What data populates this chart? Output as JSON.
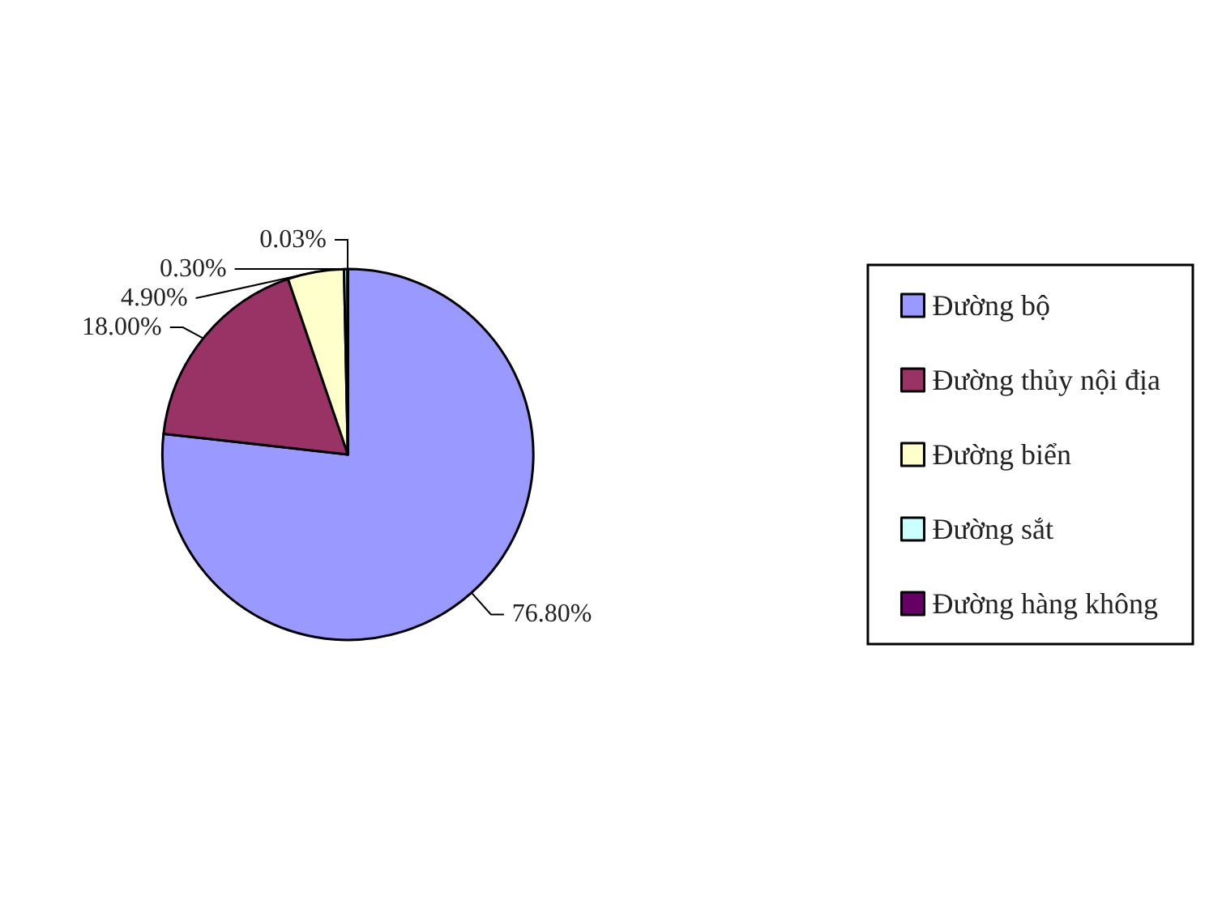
{
  "chart_data": {
    "type": "pie",
    "categories": [
      "Đường bộ",
      "Đường thủy nội địa",
      "Đường biển",
      "Đường sắt",
      "Đường hàng không"
    ],
    "values": [
      76.8,
      18.0,
      4.9,
      0.3,
      0.03
    ],
    "colors": [
      "#9999ff",
      "#993366",
      "#ffffcc",
      "#ccffff",
      "#660066"
    ],
    "value_labels": [
      "76.80%",
      "18.00%",
      "4.90%",
      "0.30%",
      "0.03%"
    ],
    "legend": "right"
  }
}
